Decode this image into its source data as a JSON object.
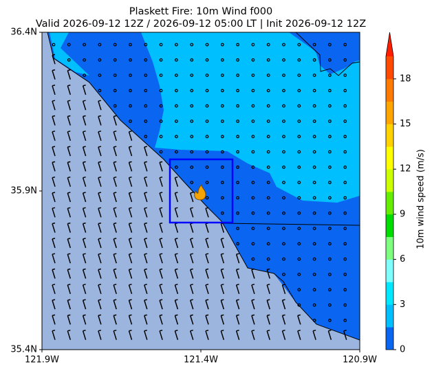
{
  "chart_data": {
    "type": "map",
    "title": "Plaskett Fire: 10m Wind f000",
    "subtitle": "Valid 2026-09-12 12Z / 2026-09-12 05:00 LT | Init 2026-09-12 12Z",
    "xlim": [
      -121.9,
      -120.9
    ],
    "xticks": [
      {
        "value": -121.9,
        "label": "121.9W"
      },
      {
        "value": -121.4,
        "label": "121.4W"
      },
      {
        "value": -120.9,
        "label": "120.9W"
      }
    ],
    "ylim": [
      35.4,
      36.4
    ],
    "yticks": [
      {
        "value": 35.4,
        "label": "35.4N"
      },
      {
        "value": 35.9,
        "label": "35.9N"
      },
      {
        "value": 36.4,
        "label": "36.4N"
      }
    ],
    "colorbar": {
      "label": "10m wind speed (m/s)",
      "lim": [
        0,
        19.5
      ],
      "ticks": [
        0,
        3,
        6,
        9,
        12,
        15,
        18
      ],
      "colors": [
        "#0a66f0",
        "#00bfff",
        "#00e8ff",
        "#80ffff",
        "#7fff7f",
        "#00dd00",
        "#66ee00",
        "#ccff00",
        "#ffff00",
        "#ffd200",
        "#ffa500",
        "#ff7a00",
        "#ff4a00"
      ],
      "over_color": "#ff1e00"
    }
  }
}
